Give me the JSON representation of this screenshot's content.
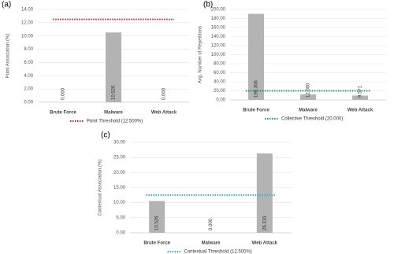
{
  "chart_data": [
    {
      "type": "bar",
      "panel_label": "(a)",
      "y_label": "Point Association (%)",
      "categories": [
        "Brute Force",
        "Malware",
        "Web Attack"
      ],
      "values": [
        0,
        10.526,
        0
      ],
      "value_labels": [
        "0.000",
        "10.526",
        "0.000"
      ],
      "color": "#b3b3b3",
      "ylim": [
        0,
        14
      ],
      "yticks": [
        {
          "value": 0,
          "label": "0.00"
        },
        {
          "value": 2,
          "label": "2.00"
        },
        {
          "value": 4,
          "label": "4.00"
        },
        {
          "value": 6,
          "label": "6.00"
        },
        {
          "value": 8,
          "label": "8.00"
        },
        {
          "value": 10,
          "label": "10.00"
        },
        {
          "value": 12,
          "label": "12.00"
        },
        {
          "value": 14,
          "label": "14.00"
        }
      ],
      "grid": true,
      "threshold": {
        "name": "Point Threshold (12.500%)",
        "value": 12.5,
        "color": "#c0282d"
      }
    },
    {
      "type": "bar",
      "panel_label": "(b)",
      "y_label": "Avg. Number of Repetitions",
      "categories": [
        "Brute Force",
        "Malware",
        "Web Attack"
      ],
      "values": [
        190.306,
        12,
        9.571
      ],
      "value_labels": [
        "190.306",
        "12.000",
        "9.571"
      ],
      "color": "#b3b3b3",
      "ylim": [
        0,
        200
      ],
      "yticks": [
        {
          "value": 0,
          "label": "0.00"
        },
        {
          "value": 20,
          "label": "20.00"
        },
        {
          "value": 40,
          "label": "40.00"
        },
        {
          "value": 60,
          "label": "60.00"
        },
        {
          "value": 80,
          "label": "80.00"
        },
        {
          "value": 100,
          "label": "100.00"
        },
        {
          "value": 120,
          "label": "120.00"
        },
        {
          "value": 140,
          "label": "140.00"
        },
        {
          "value": 160,
          "label": "160.00"
        },
        {
          "value": 180,
          "label": "180.00"
        },
        {
          "value": 200,
          "label": "200.00"
        }
      ],
      "grid": true,
      "threshold": {
        "name": "Collective Threshold (20.000)",
        "value": 20,
        "color": "#1e9a5a"
      }
    },
    {
      "type": "bar",
      "panel_label": "(c)",
      "y_label": "Contextual Association (%)",
      "categories": [
        "Brute Force",
        "Malware",
        "Web Attack"
      ],
      "values": [
        10.526,
        0,
        26.316
      ],
      "value_labels": [
        "10.526",
        "0.000",
        "26.316"
      ],
      "color": "#b3b3b3",
      "ylim": [
        0,
        30
      ],
      "yticks": [
        {
          "value": 0,
          "label": "0.00"
        },
        {
          "value": 5,
          "label": "5.00"
        },
        {
          "value": 10,
          "label": "10.00"
        },
        {
          "value": 15,
          "label": "15.00"
        },
        {
          "value": 20,
          "label": "20.00"
        },
        {
          "value": 25,
          "label": "25.00"
        },
        {
          "value": 30,
          "label": "30.00"
        }
      ],
      "grid": true,
      "threshold": {
        "name": "Contextual Threshold (12.500%)",
        "value": 12.5,
        "color": "#2bb5d6"
      }
    }
  ]
}
